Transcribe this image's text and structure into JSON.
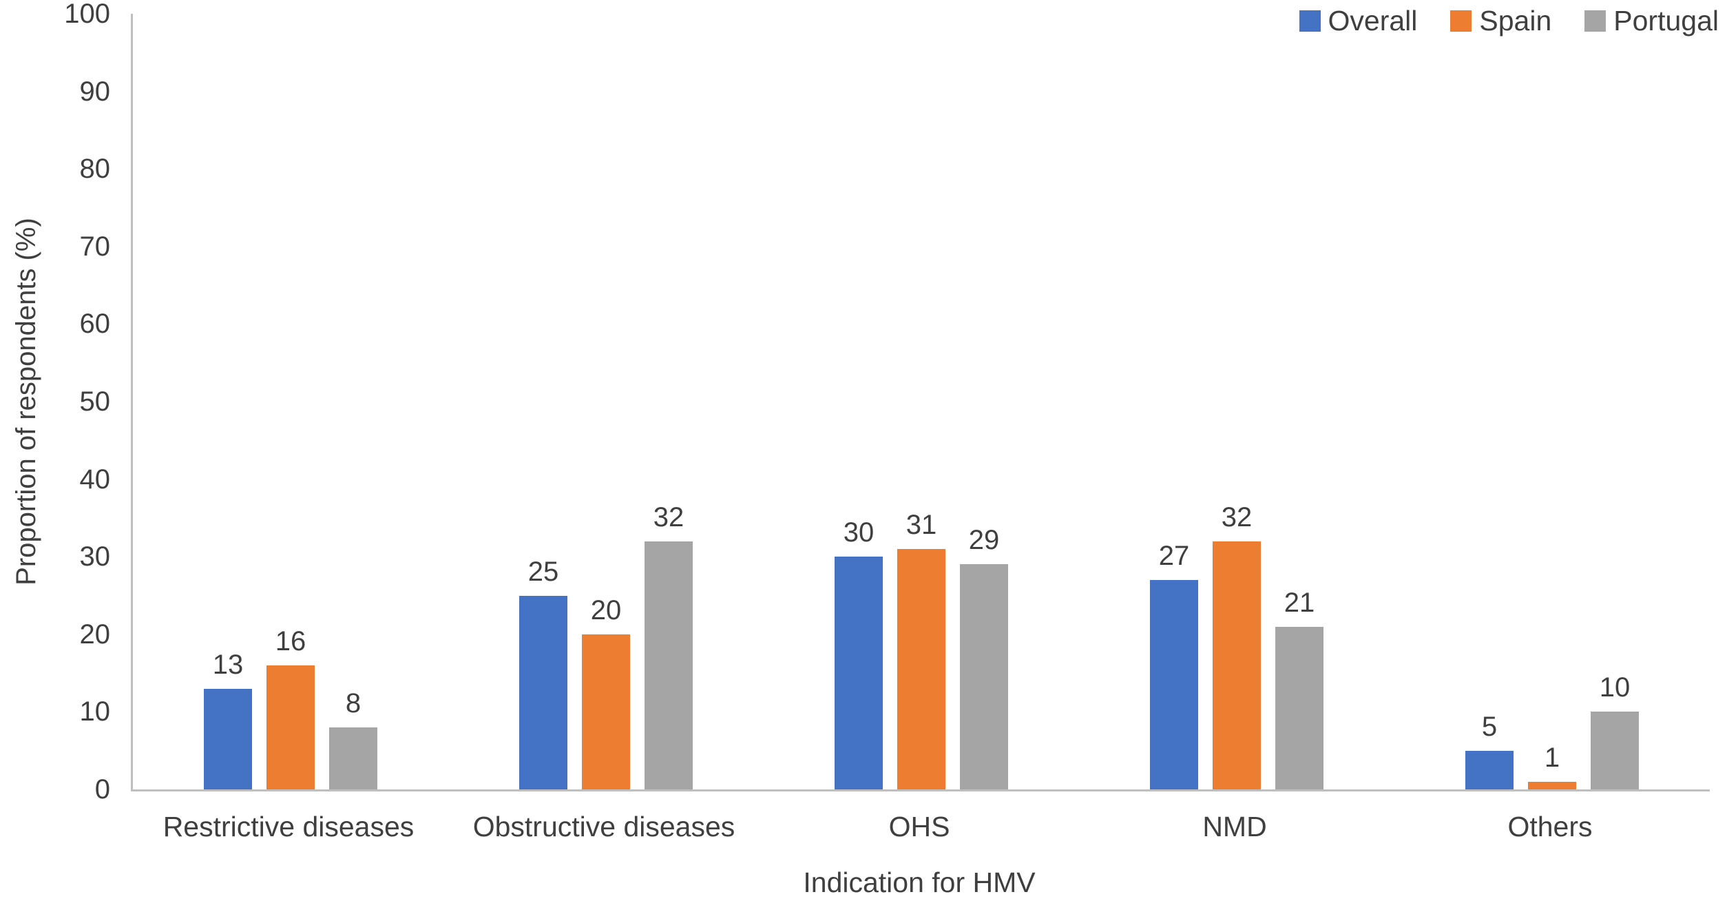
{
  "chart_data": {
    "type": "bar",
    "title": "",
    "categories": [
      "Restrictive diseases",
      "Obstructive diseases",
      "OHS",
      "NMD",
      "Others"
    ],
    "series": [
      {
        "name": "Overall",
        "color": "#4472C4",
        "values": [
          13,
          25,
          30,
          27,
          5
        ]
      },
      {
        "name": "Spain",
        "color": "#ED7D31",
        "values": [
          16,
          20,
          31,
          32,
          1
        ]
      },
      {
        "name": "Portugal",
        "color": "#A5A5A5",
        "values": [
          8,
          32,
          29,
          21,
          10
        ]
      }
    ],
    "xlabel": "Indication for HMV",
    "ylabel": "Proportion of respondents (%)",
    "ylim": [
      0,
      100
    ],
    "yticks": [
      0,
      10,
      20,
      30,
      40,
      50,
      60,
      70,
      80,
      90,
      100
    ],
    "grid": false,
    "legend_position": "top-right",
    "data_labels": true,
    "axis_line_color": "#bfbfbf",
    "text_color": "#3f3f3f"
  }
}
